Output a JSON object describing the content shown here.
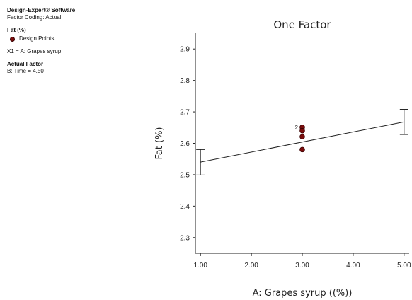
{
  "info": {
    "software": "Design-Expert® Software",
    "coding": "Factor Coding: Actual",
    "response": "Fat (%)",
    "legend_label": "Design Points",
    "x1": "X1 = A: Grapes syrup",
    "actual_factor_header": "Actual Factor",
    "actual_factor_value": "B: Time = 4.50"
  },
  "chart_data": {
    "type": "scatter",
    "title": "One Factor",
    "xlabel": "A: Grapes syrup ((%))",
    "ylabel": "Fat (%)",
    "xlim": [
      0.9,
      5.1
    ],
    "ylim": [
      2.25,
      2.95
    ],
    "xticks": [
      "1.00",
      "2.00",
      "3.00",
      "4.00",
      "5.00"
    ],
    "yticks": [
      "2.3",
      "2.4",
      "2.5",
      "2.6",
      "2.7",
      "2.8",
      "2.9"
    ],
    "fit_line": {
      "x": [
        1,
        5
      ],
      "y": [
        2.54,
        2.668
      ]
    },
    "error_bars": [
      {
        "x": 1,
        "low": 2.499,
        "high": 2.58
      },
      {
        "x": 5,
        "low": 2.628,
        "high": 2.708
      }
    ],
    "design_points": {
      "x": [
        3,
        3,
        3,
        3
      ],
      "y": [
        2.651,
        2.64,
        2.621,
        2.58
      ]
    },
    "point_annotation": {
      "text": "2",
      "x": 3,
      "y": 2.651
    },
    "point_color": "#7a0d0d",
    "grid": false,
    "legend_placement": "left panel"
  }
}
